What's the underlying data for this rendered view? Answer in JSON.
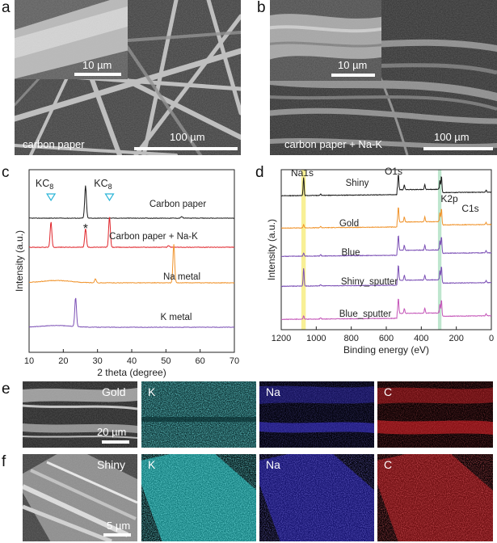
{
  "panels": {
    "a": {
      "letter": "a",
      "caption": "carbon paper",
      "scale_main": "100 µm",
      "scale_inset": "10 µm"
    },
    "b": {
      "letter": "b",
      "caption": "carbon paper + Na-K",
      "scale_main": "100 µm",
      "scale_inset": "10 µm"
    },
    "c": {
      "letter": "c"
    },
    "d": {
      "letter": "d"
    },
    "e": {
      "letter": "e",
      "sem_label": "Gold",
      "scale": "20 µm",
      "maps": [
        "K",
        "Na",
        "C"
      ]
    },
    "f": {
      "letter": "f",
      "sem_label": "Shiny",
      "scale": "5 µm",
      "maps": [
        "K",
        "Na",
        "C"
      ]
    }
  },
  "colors": {
    "carbon_paper": "#1a1a1a",
    "carbon_paper_nak": "#e0252b",
    "na_metal": "#f0932b",
    "k_metal": "#7b4fb5",
    "xps_shiny": "#1a1a1a",
    "xps_gold": "#f0932b",
    "xps_blue": "#7b4fb5",
    "xps_shiny_sputter": "#7b4fb5",
    "xps_blue_sputter": "#c455b8",
    "na1s_band": "#f7ee8a",
    "k2p_band": "#b7e3c9",
    "map_k": "#2fc4c4",
    "map_na": "#3a33d6",
    "map_c": "#e0242a",
    "marker_cyan": "#2bb5d8"
  },
  "chart_data": [
    {
      "type": "line",
      "panel": "c",
      "xlabel": "2 theta (degree)",
      "ylabel": "Intensity (a.u.)",
      "xlim": [
        10,
        70
      ],
      "xticks": [
        "10",
        "20",
        "30",
        "40",
        "50",
        "60",
        "70"
      ],
      "annotations": [
        {
          "text": "KC",
          "sub": "8",
          "x": 16.4
        },
        {
          "text": "KC",
          "sub": "8",
          "x": 33.5
        },
        {
          "text": "*",
          "x": 26.5
        }
      ],
      "series": [
        {
          "name": "Carbon paper",
          "peaks": [
            [
              26.5,
              1.0
            ],
            [
              54.6,
              0.05
            ]
          ]
        },
        {
          "name": "Carbon paper + Na-K",
          "peaks": [
            [
              16.4,
              0.75
            ],
            [
              26.5,
              0.55
            ],
            [
              33.5,
              0.9
            ],
            [
              50.8,
              0.05
            ]
          ]
        },
        {
          "name": "Na metal",
          "peaks": [
            [
              29.4,
              0.1
            ],
            [
              52.3,
              1.0
            ]
          ]
        },
        {
          "name": "K metal",
          "peaks": [
            [
              23.6,
              1.0
            ]
          ]
        }
      ]
    },
    {
      "type": "line",
      "panel": "d",
      "xlabel": "Binding energy (eV)",
      "ylabel": "Intensity (a.u.)",
      "xlim": [
        1200,
        0
      ],
      "xticks": [
        "1200",
        "1000",
        "800",
        "600",
        "400",
        "200",
        "0"
      ],
      "annotations": [
        {
          "text": "Na1s",
          "x": 1072
        },
        {
          "text": "O1s",
          "x": 531
        },
        {
          "text": "K2p",
          "x": 294
        },
        {
          "text": "C1s",
          "x": 285
        }
      ],
      "series": [
        {
          "name": "Shiny"
        },
        {
          "name": "Gold"
        },
        {
          "name": "Blue"
        },
        {
          "name": "Shiny_sputter"
        },
        {
          "name": "Blue_sputter"
        }
      ]
    }
  ]
}
